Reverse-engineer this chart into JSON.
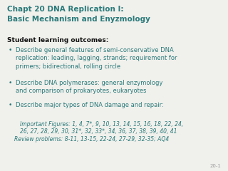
{
  "bg_color": "#f0f0ec",
  "title_line1": "Chapt 20 DNA Replication I:",
  "title_line2": "Basic Mechanism and Enyzmology",
  "title_color": "#1a7070",
  "section_header": "Student learning outcomes:",
  "section_header_color": "#111111",
  "teal": "#2a7a7a",
  "bullets": [
    "Describe general features of semi-conservative DNA\nreplication: leading, lagging, strands; requirement for\nprimers; bidirectional, rolling circle",
    "Describe DNA polymerases: general enzymology\nand comparison of prokaryotes, eukaryotes",
    "Describe major types of DNA damage and repair:"
  ],
  "important_line1": "Important Figures: 1, 4, 7*, 9, 10, 13, 14, 15, 16, 18, 22, 24,",
  "important_line2": "26, 27, 28, 29, 30, 31*, 32, 33*, 34, 36, 37, 38, 39, 40, 41",
  "review_line": "Review problems: 8-11, 13-15, 22-24, 27-29, 32-35; AQ4",
  "footer": "20-1",
  "footer_color": "#999999"
}
